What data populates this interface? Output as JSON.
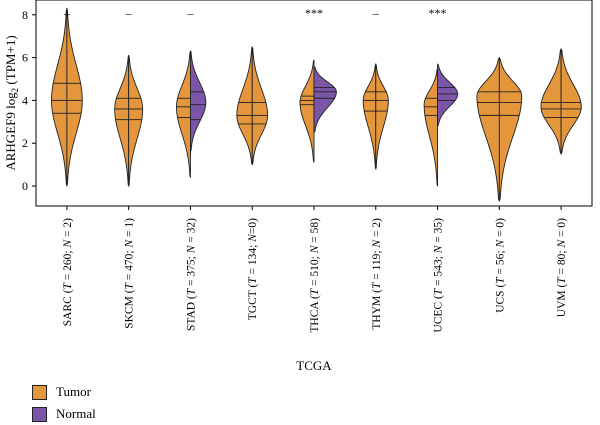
{
  "chart_data": {
    "type": "violin",
    "title": "",
    "xlabel": "TCGA",
    "ylabel_main": "ARHGEF9 log",
    "ylabel_sub": "2",
    "ylabel_tail": " (TPM+1)",
    "ylim": [
      -0.8,
      8.4
    ],
    "yticks": [
      0,
      2,
      4,
      6,
      8
    ],
    "grid": false,
    "legend_position": "bottom-left",
    "colors": {
      "tumor": "#E4963C",
      "normal": "#7B56A8"
    },
    "legend": [
      {
        "key": "tumor",
        "label": "Tumor",
        "color": "#E4963C"
      },
      {
        "key": "normal",
        "label": "Normal",
        "color": "#7B56A8"
      }
    ],
    "categories": [
      {
        "code": "SARC",
        "t": "260",
        "n": "2",
        "sig": "–",
        "sep": " ",
        "tumor": {
          "min": 0.0,
          "max": 8.3,
          "mode": 4.0,
          "width": 0.55,
          "q": [
            3.4,
            4.0,
            4.8
          ]
        },
        "normal": null
      },
      {
        "code": "SKCM",
        "t": "470",
        "n": "1",
        "sig": "–",
        "sep": " ",
        "tumor": {
          "min": 0.0,
          "max": 6.1,
          "mode": 3.6,
          "width": 0.5,
          "q": [
            3.1,
            3.6,
            4.1
          ]
        },
        "normal": null
      },
      {
        "code": "STAD",
        "t": "375",
        "n": "32",
        "sig": "–",
        "sep": " ",
        "tumor": {
          "min": 0.4,
          "max": 6.3,
          "mode": 3.7,
          "width": 0.5,
          "q": [
            3.2,
            3.7,
            4.1
          ]
        },
        "normal": {
          "min": 1.6,
          "max": 6.3,
          "mode": 3.9,
          "width": 0.55,
          "q": [
            3.1,
            3.8,
            4.4
          ]
        }
      },
      {
        "code": "TGCT",
        "t": "134",
        "n": "0",
        "sig": "",
        "sep": "",
        "tumor": {
          "min": 1.0,
          "max": 6.5,
          "mode": 3.3,
          "width": 0.55,
          "q": [
            2.9,
            3.3,
            3.9
          ]
        },
        "normal": null
      },
      {
        "code": "THCA",
        "t": "510",
        "n": "58",
        "sig": "***",
        "sep": " ",
        "tumor": {
          "min": 1.1,
          "max": 5.9,
          "mode": 3.9,
          "width": 0.5,
          "q": [
            3.8,
            4.0,
            4.2
          ]
        },
        "normal": {
          "min": 2.5,
          "max": 5.6,
          "mode": 4.4,
          "width": 0.8,
          "q": [
            4.1,
            4.4,
            4.6
          ]
        }
      },
      {
        "code": "THYM",
        "t": "119",
        "n": "2",
        "sig": "–",
        "sep": " ",
        "tumor": {
          "min": 0.8,
          "max": 5.7,
          "mode": 4.0,
          "width": 0.45,
          "q": [
            3.5,
            4.0,
            4.4
          ]
        },
        "normal": null
      },
      {
        "code": "UCEC",
        "t": "543",
        "n": "35",
        "sig": "***",
        "sep": " ",
        "tumor": {
          "min": 0.0,
          "max": 5.5,
          "mode": 3.8,
          "width": 0.48,
          "q": [
            3.3,
            3.7,
            4.1
          ]
        },
        "normal": {
          "min": 2.8,
          "max": 5.7,
          "mode": 4.3,
          "width": 0.72,
          "q": [
            4.0,
            4.3,
            4.6
          ]
        }
      },
      {
        "code": "UCS",
        "t": "56",
        "n": "0",
        "sig": "",
        "sep": " ",
        "tumor": {
          "min": -0.7,
          "max": 6.0,
          "mode": 4.2,
          "width": 0.8,
          "q": [
            3.3,
            3.9,
            4.4
          ]
        },
        "normal": null
      },
      {
        "code": "UVM",
        "t": "80",
        "n": "0",
        "sig": "",
        "sep": " ",
        "tumor": {
          "min": 1.5,
          "max": 6.4,
          "mode": 3.7,
          "width": 0.72,
          "q": [
            3.2,
            3.6,
            3.9
          ]
        },
        "normal": null
      }
    ]
  }
}
